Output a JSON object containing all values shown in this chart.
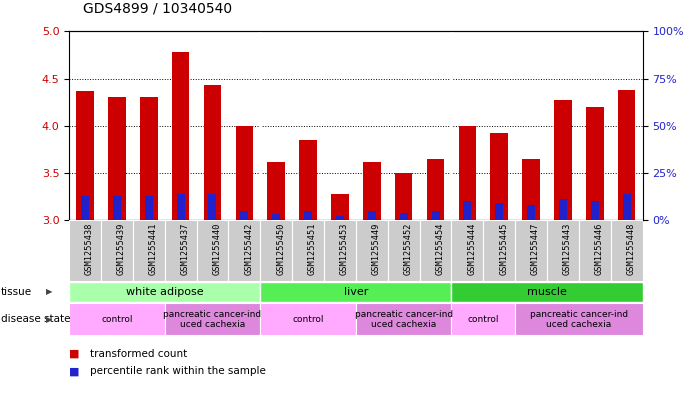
{
  "title": "GDS4899 / 10340540",
  "samples": [
    "GSM1255438",
    "GSM1255439",
    "GSM1255441",
    "GSM1255437",
    "GSM1255440",
    "GSM1255442",
    "GSM1255450",
    "GSM1255451",
    "GSM1255453",
    "GSM1255449",
    "GSM1255452",
    "GSM1255454",
    "GSM1255444",
    "GSM1255445",
    "GSM1255447",
    "GSM1255443",
    "GSM1255446",
    "GSM1255448"
  ],
  "transformed_count": [
    4.37,
    4.3,
    4.3,
    4.78,
    4.43,
    4.0,
    3.62,
    3.85,
    3.28,
    3.62,
    3.5,
    3.65,
    4.0,
    3.92,
    3.65,
    4.27,
    4.2,
    4.38
  ],
  "percentile_rank": [
    13,
    13,
    13,
    14,
    14,
    5,
    3,
    5,
    2,
    5,
    4,
    5,
    10,
    9,
    8,
    11,
    10,
    14
  ],
  "ylim_left": [
    3.0,
    5.0
  ],
  "ylim_right": [
    0,
    100
  ],
  "yticks_left": [
    3.0,
    3.5,
    4.0,
    4.5,
    5.0
  ],
  "yticks_right": [
    0,
    25,
    50,
    75,
    100
  ],
  "bar_color_red": "#cc0000",
  "bar_color_blue": "#2222cc",
  "tissue_groups": [
    {
      "label": "white adipose",
      "start": 0,
      "end": 5,
      "color": "#aaffaa"
    },
    {
      "label": "liver",
      "start": 6,
      "end": 11,
      "color": "#55ee55"
    },
    {
      "label": "muscle",
      "start": 12,
      "end": 17,
      "color": "#33cc33"
    }
  ],
  "disease_groups": [
    {
      "label": "control",
      "start": 0,
      "end": 2,
      "color": "#ffaaff"
    },
    {
      "label": "pancreatic cancer-ind\nuced cachexia",
      "start": 3,
      "end": 5,
      "color": "#dd88dd"
    },
    {
      "label": "control",
      "start": 6,
      "end": 8,
      "color": "#ffaaff"
    },
    {
      "label": "pancreatic cancer-ind\nuced cachexia",
      "start": 9,
      "end": 11,
      "color": "#dd88dd"
    },
    {
      "label": "control",
      "start": 12,
      "end": 13,
      "color": "#ffaaff"
    },
    {
      "label": "pancreatic cancer-ind\nuced cachexia",
      "start": 14,
      "end": 17,
      "color": "#dd88dd"
    }
  ],
  "bar_width": 0.55,
  "blue_bar_width": 0.25,
  "bg_color": "#ffffff",
  "axis_label_color_left": "#cc0000",
  "axis_label_color_right": "#2222cc",
  "sample_bg_color": "#cccccc",
  "sample_border_color": "#ffffff"
}
